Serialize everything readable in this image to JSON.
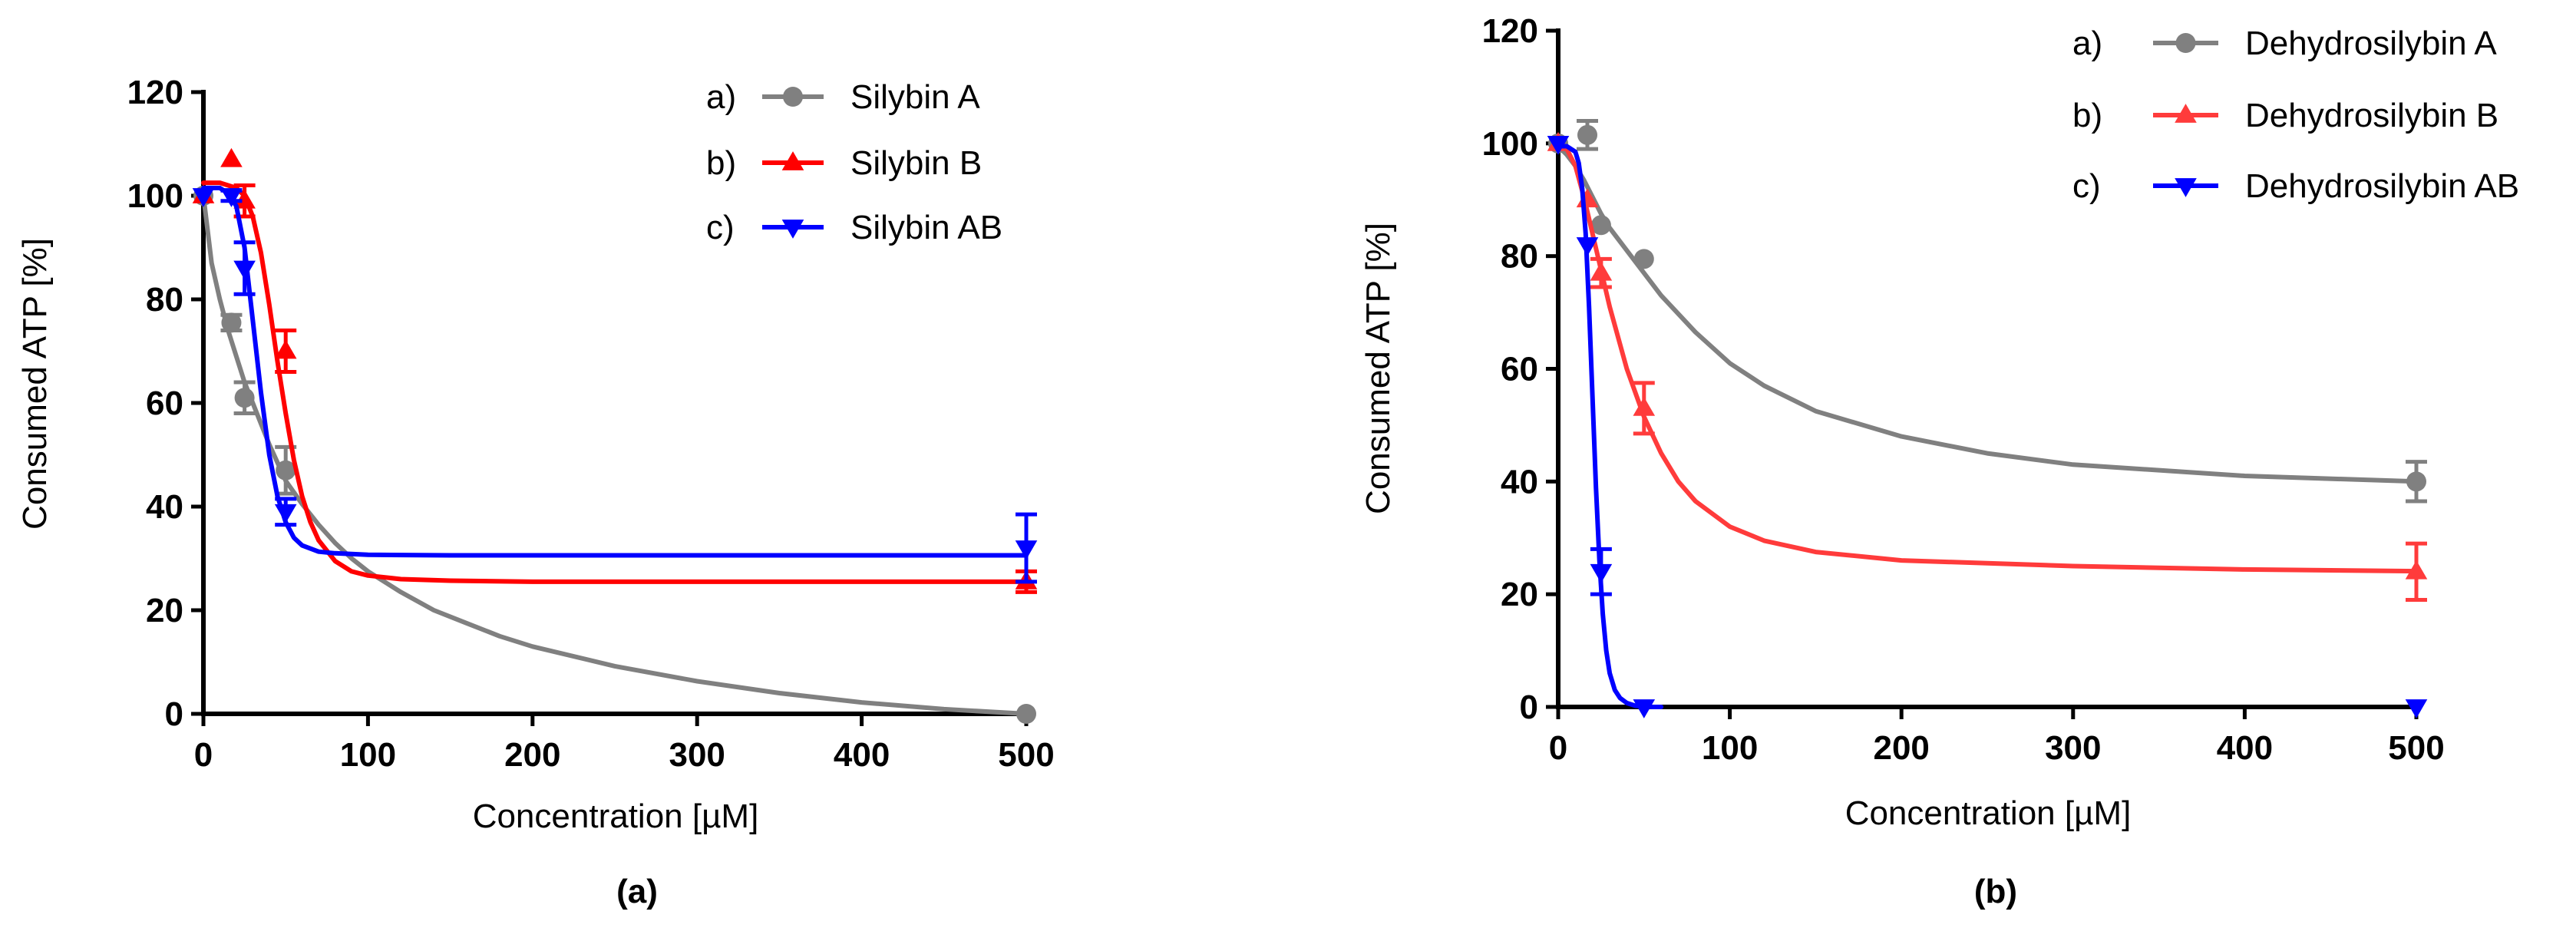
{
  "chart_data": [
    {
      "type": "scatter",
      "panel_label": "(a)",
      "xlabel": "Concentration [µM]",
      "ylabel": "Consumed ATP [%]",
      "xlim": [
        0,
        500
      ],
      "ylim": [
        0,
        120
      ],
      "xticks": [
        0,
        100,
        200,
        300,
        400,
        500
      ],
      "yticks": [
        0,
        20,
        40,
        60,
        80,
        100,
        120
      ],
      "legend_position": "top-right",
      "series": [
        {
          "prefix": "a)",
          "name": "Silybin A",
          "color": "#808080",
          "marker": "circle",
          "x": [
            0,
            17,
            25,
            50,
            500
          ],
          "y": [
            100,
            75.5,
            61,
            47,
            0
          ],
          "err": [
            0,
            1.5,
            3,
            4.5,
            0
          ],
          "curve_x": [
            0,
            5,
            10,
            15,
            20,
            25,
            30,
            35,
            40,
            45,
            50,
            60,
            70,
            80,
            90,
            100,
            120,
            140,
            160,
            180,
            200,
            250,
            300,
            350,
            400,
            450,
            500
          ],
          "curve_y": [
            100,
            87,
            80,
            74,
            69,
            64,
            60,
            56,
            52,
            48.5,
            45,
            40.5,
            36.5,
            33,
            30,
            27.5,
            23.5,
            20,
            17.5,
            15,
            13,
            9.2,
            6.3,
            4.0,
            2.2,
            0.9,
            0
          ]
        },
        {
          "prefix": "b)",
          "name": "Silybin B",
          "color": "#ff0000",
          "marker": "triangle-up",
          "x": [
            0,
            17,
            25,
            50,
            500
          ],
          "y": [
            100,
            107,
            99,
            70,
            25.5
          ],
          "err": [
            0,
            0,
            3,
            4,
            2
          ],
          "curve_x": [
            0,
            10,
            20,
            25,
            30,
            35,
            40,
            45,
            50,
            55,
            60,
            65,
            70,
            80,
            90,
            100,
            120,
            150,
            200,
            300,
            400,
            500
          ],
          "curve_y": [
            102.5,
            102.5,
            101.5,
            100,
            96,
            89,
            79,
            68,
            58,
            49,
            42,
            37,
            33.5,
            29.5,
            27.5,
            26.7,
            26,
            25.7,
            25.5,
            25.5,
            25.5,
            25.5
          ]
        },
        {
          "prefix": "c)",
          "name": "Silybin AB",
          "color": "#0000ff",
          "marker": "triangle-down",
          "x": [
            0,
            17,
            25,
            50,
            500
          ],
          "y": [
            100,
            100,
            86,
            39,
            32
          ],
          "err": [
            0,
            1,
            5,
            2.5,
            6.5
          ],
          "curve_x": [
            0,
            10,
            15,
            20,
            25,
            30,
            35,
            40,
            45,
            50,
            55,
            60,
            70,
            80,
            100,
            150,
            200,
            300,
            400,
            500
          ],
          "curve_y": [
            101.5,
            101.5,
            100.5,
            98,
            90,
            76,
            62,
            50,
            42,
            37,
            34,
            32.5,
            31.3,
            31,
            30.7,
            30.6,
            30.6,
            30.6,
            30.6,
            30.6
          ]
        }
      ]
    },
    {
      "type": "scatter",
      "panel_label": "(b)",
      "xlabel": "Concentration [µM]",
      "ylabel": "Consumed ATP [%]",
      "xlim": [
        0,
        500
      ],
      "ylim": [
        0,
        120
      ],
      "xticks": [
        0,
        100,
        200,
        300,
        400,
        500
      ],
      "yticks": [
        0,
        20,
        40,
        60,
        80,
        100,
        120
      ],
      "legend_position": "top-right",
      "series": [
        {
          "prefix": "a)",
          "name": "Dehydrosilybin A",
          "color": "#808080",
          "marker": "circle",
          "x": [
            0,
            17,
            25,
            50,
            500
          ],
          "y": [
            100,
            101.5,
            85.5,
            79.5,
            40
          ],
          "err": [
            0,
            2.5,
            0,
            0,
            3.5
          ],
          "curve_x": [
            0,
            5,
            10,
            15,
            20,
            25,
            30,
            40,
            50,
            60,
            80,
            100,
            120,
            150,
            200,
            250,
            300,
            400,
            500
          ],
          "curve_y": [
            99.5,
            98,
            96,
            93.5,
            90.5,
            87.5,
            85,
            81,
            77,
            73,
            66.5,
            61,
            57,
            52.5,
            48,
            45,
            43,
            41,
            40
          ]
        },
        {
          "prefix": "b)",
          "name": "Dehydrosilybin B",
          "color": "#ff3b3b",
          "marker": "triangle-up",
          "x": [
            0,
            17,
            25,
            50,
            500
          ],
          "y": [
            100,
            90,
            77,
            53,
            24
          ],
          "err": [
            0,
            0,
            2.5,
            4.5,
            5
          ],
          "curve_x": [
            0,
            5,
            10,
            15,
            20,
            25,
            30,
            40,
            50,
            60,
            70,
            80,
            100,
            120,
            150,
            200,
            300,
            400,
            500
          ],
          "curve_y": [
            99.5,
            99,
            96,
            90.5,
            84,
            77.5,
            71,
            60,
            51.5,
            45,
            40,
            36.5,
            32,
            29.5,
            27.5,
            26,
            25,
            24.4,
            24.1
          ]
        },
        {
          "prefix": "c)",
          "name": "Dehydrosilybin AB",
          "color": "#0000ff",
          "marker": "triangle-down",
          "x": [
            0,
            17,
            25,
            50,
            500
          ],
          "y": [
            100,
            82,
            24,
            0,
            0
          ],
          "err": [
            0,
            0,
            4,
            0,
            0
          ],
          "curve_x": [
            0,
            5,
            10,
            12,
            14,
            16,
            18,
            20,
            22,
            24,
            26,
            28,
            30,
            33,
            36,
            40,
            45,
            50,
            55,
            60
          ],
          "curve_y": [
            99.5,
            99.5,
            98.5,
            96.5,
            92,
            84,
            71,
            55,
            39,
            26,
            16.5,
            10,
            6,
            3,
            1.6,
            0.7,
            0.2,
            0.1,
            0,
            0
          ]
        }
      ]
    }
  ]
}
